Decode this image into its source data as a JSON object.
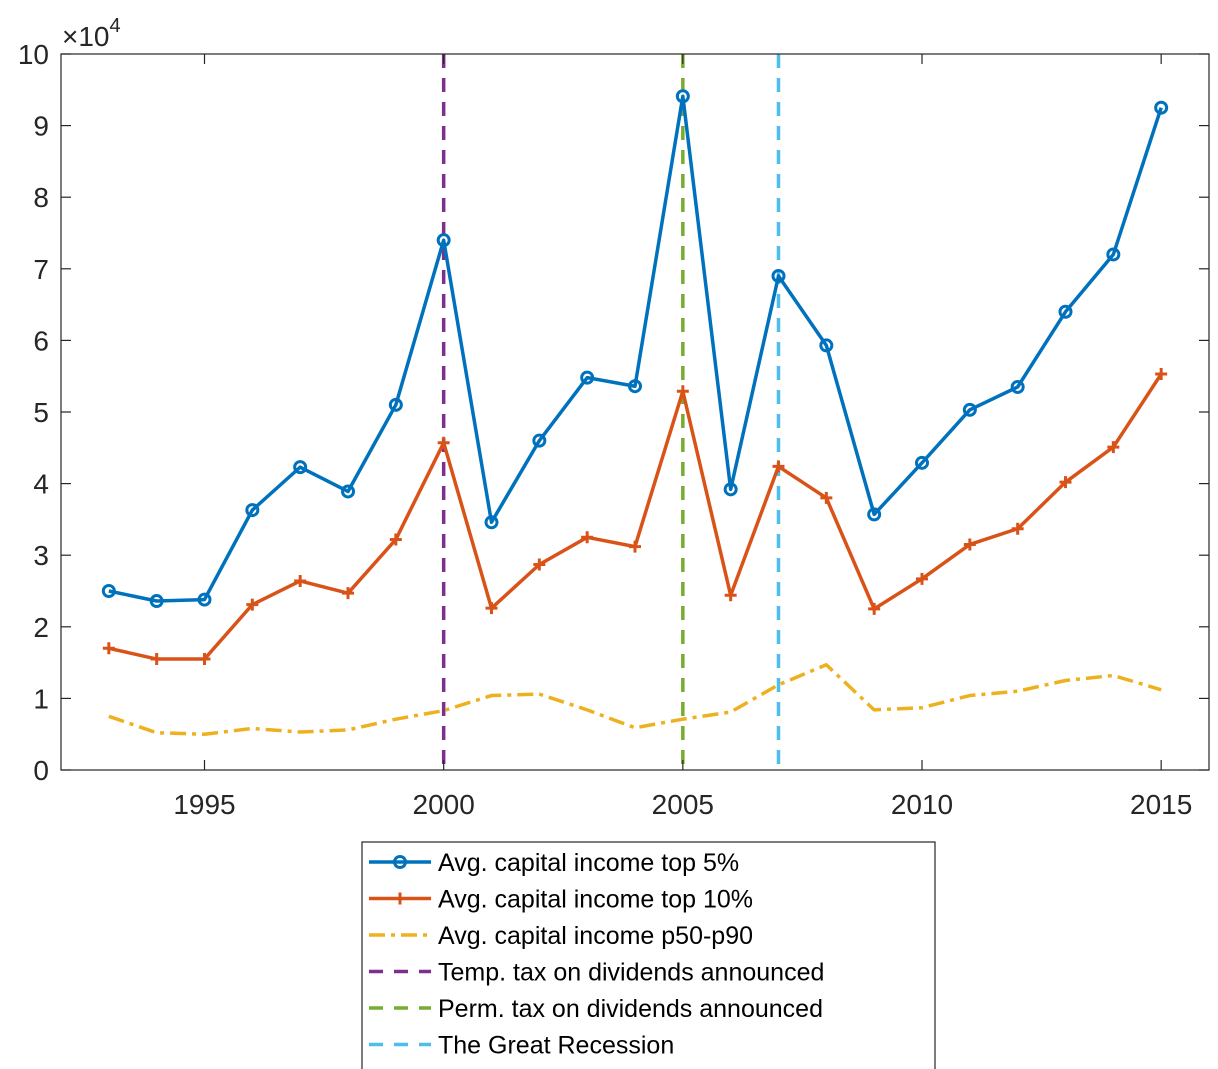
{
  "chart_data": {
    "type": "line",
    "x": [
      1993,
      1994,
      1995,
      1996,
      1997,
      1998,
      1999,
      2000,
      2001,
      2002,
      2003,
      2004,
      2005,
      2006,
      2007,
      2008,
      2009,
      2010,
      2011,
      2012,
      2013,
      2014,
      2015
    ],
    "xlim": [
      1992,
      2016
    ],
    "ylim": [
      0,
      100000
    ],
    "xticks": [
      1995,
      2000,
      2005,
      2010,
      2015
    ],
    "yticks": [
      0,
      10000,
      20000,
      30000,
      40000,
      50000,
      60000,
      70000,
      80000,
      90000,
      100000
    ],
    "ytick_labels": [
      "0",
      "1",
      "2",
      "3",
      "4",
      "5",
      "6",
      "7",
      "8",
      "9",
      "10"
    ],
    "y_exponent_label": "×10",
    "y_exponent_power": "4",
    "grid": false,
    "legend_position": "bottom-center",
    "series": [
      {
        "name": "Avg. capital income top 5%",
        "color": "#0072BD",
        "marker": "circle",
        "style": "solid",
        "values": [
          25000,
          23600,
          23800,
          36300,
          42300,
          38900,
          51000,
          74000,
          34600,
          46000,
          54800,
          53600,
          94100,
          39200,
          69000,
          59300,
          35700,
          42900,
          50300,
          53500,
          64000,
          72000,
          92500
        ]
      },
      {
        "name": "Avg. capital income top 10%",
        "color": "#D95319",
        "marker": "plus",
        "style": "solid",
        "values": [
          17000,
          15500,
          15500,
          23100,
          26400,
          24700,
          32200,
          45700,
          22600,
          28700,
          32500,
          31200,
          52900,
          24400,
          42400,
          38000,
          22500,
          26700,
          31500,
          33700,
          40200,
          45100,
          55300
        ]
      },
      {
        "name": "Avg. capital income p50-p90",
        "color": "#EDB120",
        "marker": "none",
        "style": "dashdot",
        "values": [
          7500,
          5200,
          5000,
          5800,
          5300,
          5600,
          7100,
          8300,
          10400,
          10600,
          8400,
          5900,
          7100,
          8100,
          11900,
          14700,
          8400,
          8700,
          10400,
          11000,
          12500,
          13200,
          11200
        ]
      }
    ],
    "vlines": [
      {
        "name": "Temp. tax on dividends announced",
        "x": 2000,
        "color": "#7E2F8E"
      },
      {
        "name": "Perm. tax on dividends announced",
        "x": 2005,
        "color": "#77AC30"
      },
      {
        "name": "The Great Recession",
        "x": 2007,
        "color": "#4DBEEE"
      }
    ]
  }
}
